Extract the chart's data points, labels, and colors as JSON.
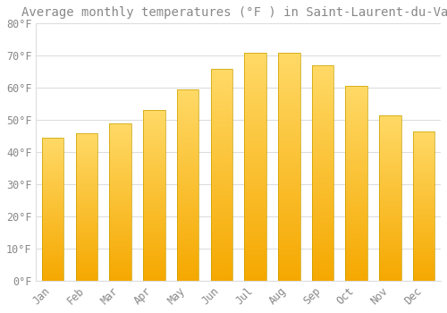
{
  "title": "Average monthly temperatures (°F ) in Saint-Laurent-du-Var",
  "months": [
    "Jan",
    "Feb",
    "Mar",
    "Apr",
    "May",
    "Jun",
    "Jul",
    "Aug",
    "Sep",
    "Oct",
    "Nov",
    "Dec"
  ],
  "values": [
    44.5,
    46.0,
    49.0,
    53.0,
    59.5,
    66.0,
    71.0,
    71.0,
    67.0,
    60.5,
    51.5,
    46.5
  ],
  "bar_color_bottom": "#F5A800",
  "bar_color_top": "#FFD966",
  "bar_edge_color": "#C8A000",
  "background_color": "#FFFFFF",
  "grid_color": "#DDDDDD",
  "text_color": "#888888",
  "ylim": [
    0,
    80
  ],
  "yticks": [
    0,
    10,
    20,
    30,
    40,
    50,
    60,
    70,
    80
  ],
  "ytick_labels": [
    "0°F",
    "10°F",
    "20°F",
    "30°F",
    "40°F",
    "50°F",
    "60°F",
    "70°F",
    "80°F"
  ],
  "title_fontsize": 10,
  "tick_fontsize": 8.5
}
